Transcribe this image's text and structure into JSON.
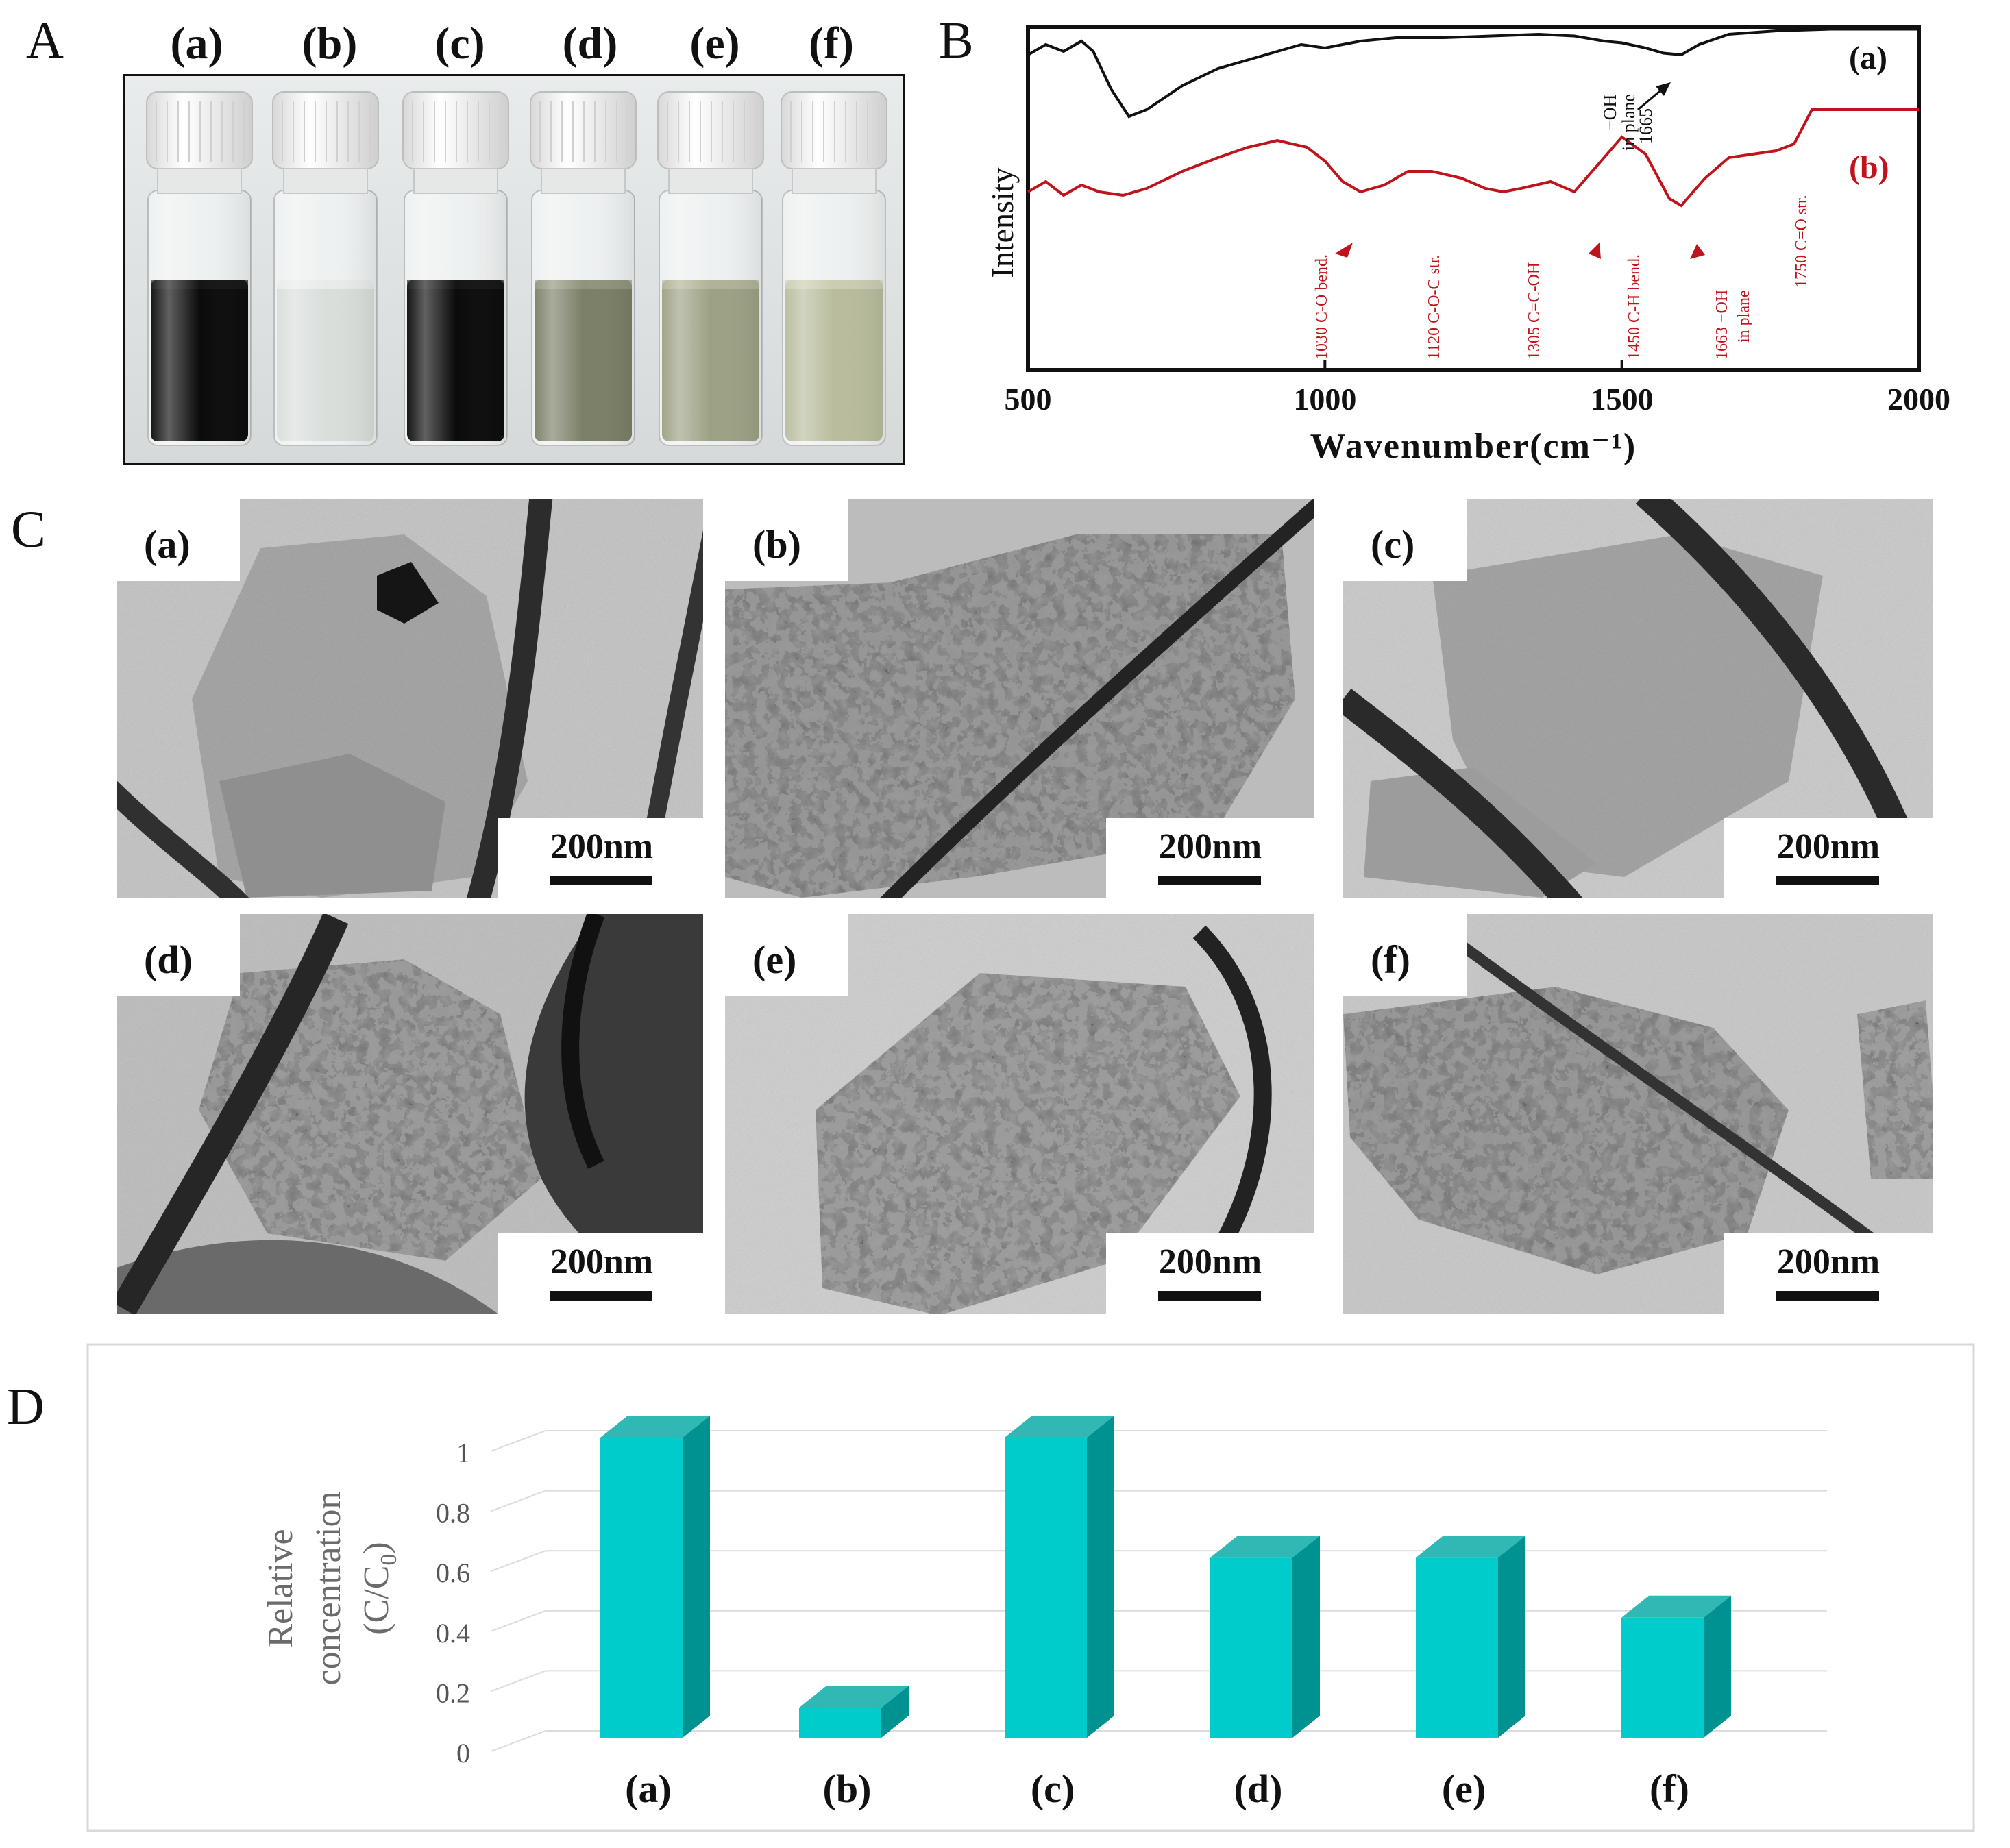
{
  "panels": {
    "A": "A",
    "B": "B",
    "C": "C",
    "D": "D"
  },
  "panel_a": {
    "vials": [
      {
        "label": "(a)",
        "liquid": "#0b0b0b",
        "tint": "#1a1a1a"
      },
      {
        "label": "(b)",
        "liquid": "#d9dedb",
        "tint": "#eef1ef"
      },
      {
        "label": "(c)",
        "liquid": "#0b0b0b",
        "tint": "#1a1a1a"
      },
      {
        "label": "(d)",
        "liquid": "#7b7f66",
        "tint": "#9a9d84"
      },
      {
        "label": "(e)",
        "liquid": "#9da184",
        "tint": "#b8bb9f"
      },
      {
        "label": "(f)",
        "liquid": "#b9bd9d",
        "tint": "#d2d4b9"
      }
    ]
  },
  "panel_b": {
    "chart_data": {
      "type": "line",
      "xlabel": "Wavenumber(cm⁻¹)",
      "ylabel": "Intensity",
      "xlim": [
        500,
        2000
      ],
      "xticks": [
        500,
        1000,
        1500,
        2000
      ],
      "series": [
        {
          "name": "(a)",
          "color": "#111111",
          "points": [
            [
              500,
              0.92
            ],
            [
              530,
              0.95
            ],
            [
              560,
              0.93
            ],
            [
              590,
              0.96
            ],
            [
              610,
              0.93
            ],
            [
              640,
              0.82
            ],
            [
              670,
              0.74
            ],
            [
              700,
              0.76
            ],
            [
              760,
              0.83
            ],
            [
              820,
              0.88
            ],
            [
              900,
              0.92
            ],
            [
              960,
              0.95
            ],
            [
              1000,
              0.94
            ],
            [
              1060,
              0.96
            ],
            [
              1120,
              0.97
            ],
            [
              1200,
              0.97
            ],
            [
              1280,
              0.975
            ],
            [
              1360,
              0.98
            ],
            [
              1420,
              0.975
            ],
            [
              1470,
              0.96
            ],
            [
              1500,
              0.955
            ],
            [
              1540,
              0.94
            ],
            [
              1570,
              0.925
            ],
            [
              1600,
              0.92
            ],
            [
              1630,
              0.95
            ],
            [
              1680,
              0.98
            ],
            [
              1760,
              0.99
            ],
            [
              1850,
              0.995
            ],
            [
              1950,
              0.995
            ],
            [
              2000,
              0.995
            ]
          ]
        },
        {
          "name": "(b)",
          "color": "#c0141c",
          "points": [
            [
              500,
              0.52
            ],
            [
              530,
              0.55
            ],
            [
              560,
              0.51
            ],
            [
              590,
              0.54
            ],
            [
              620,
              0.52
            ],
            [
              660,
              0.51
            ],
            [
              700,
              0.53
            ],
            [
              760,
              0.58
            ],
            [
              820,
              0.62
            ],
            [
              870,
              0.65
            ],
            [
              920,
              0.67
            ],
            [
              970,
              0.65
            ],
            [
              1000,
              0.61
            ],
            [
              1030,
              0.55
            ],
            [
              1060,
              0.52
            ],
            [
              1100,
              0.54
            ],
            [
              1140,
              0.58
            ],
            [
              1180,
              0.58
            ],
            [
              1230,
              0.56
            ],
            [
              1270,
              0.53
            ],
            [
              1300,
              0.52
            ],
            [
              1330,
              0.53
            ],
            [
              1380,
              0.55
            ],
            [
              1420,
              0.52
            ],
            [
              1460,
              0.6
            ],
            [
              1500,
              0.68
            ],
            [
              1540,
              0.63
            ],
            [
              1580,
              0.5
            ],
            [
              1600,
              0.48
            ],
            [
              1640,
              0.56
            ],
            [
              1680,
              0.62
            ],
            [
              1720,
              0.63
            ],
            [
              1760,
              0.64
            ],
            [
              1790,
              0.66
            ],
            [
              1820,
              0.76
            ],
            [
              1860,
              0.76
            ],
            [
              1950,
              0.76
            ],
            [
              2000,
              0.76
            ]
          ]
        }
      ],
      "series_labels": [
        "(a)",
        "(b)"
      ],
      "annotations": {
        "a_oh": [
          "−OH",
          "in plane",
          "1665"
        ],
        "b_peaks": [
          {
            "x": 1030,
            "text": "1030 C-O bend."
          },
          {
            "x": 1120,
            "text": "1120 C-O-C str."
          },
          {
            "x": 1305,
            "text": "1305 C=C-OH"
          },
          {
            "x": 1450,
            "text": "1450 C-H bend."
          },
          {
            "x": 1663,
            "text": "1663 −OH"
          },
          {
            "x": 1698,
            "text": "in plane"
          },
          {
            "x": 1750,
            "text": "1750 C=O str."
          }
        ]
      }
    }
  },
  "panel_c": {
    "images": [
      {
        "label": "(a)",
        "scale": "200nm"
      },
      {
        "label": "(b)",
        "scale": "200nm"
      },
      {
        "label": "(c)",
        "scale": "200nm"
      },
      {
        "label": "(d)",
        "scale": "200nm"
      },
      {
        "label": "(e)",
        "scale": "200nm"
      },
      {
        "label": "(f)",
        "scale": "200nm"
      }
    ]
  },
  "panel_d": {
    "chart_data": {
      "type": "bar",
      "categories": [
        "(a)",
        "(b)",
        "(c)",
        "(d)",
        "(e)",
        "(f)"
      ],
      "values": [
        1.0,
        0.1,
        1.0,
        0.6,
        0.6,
        0.4
      ],
      "ylabel_line1": "Relative",
      "ylabel_line2": "concentration",
      "ylabel_line3_prefix": "(C/C",
      "ylabel_line3_sub": "0",
      "ylabel_line3_suffix": ")",
      "ylim": [
        0,
        1
      ],
      "yticks": [
        "0",
        "0.2",
        "0.4",
        "0.6",
        "0.8",
        "1"
      ],
      "grid": true,
      "colors": {
        "front": "#00cccc",
        "side": "#009191",
        "top": "#2fb8b4"
      }
    }
  }
}
